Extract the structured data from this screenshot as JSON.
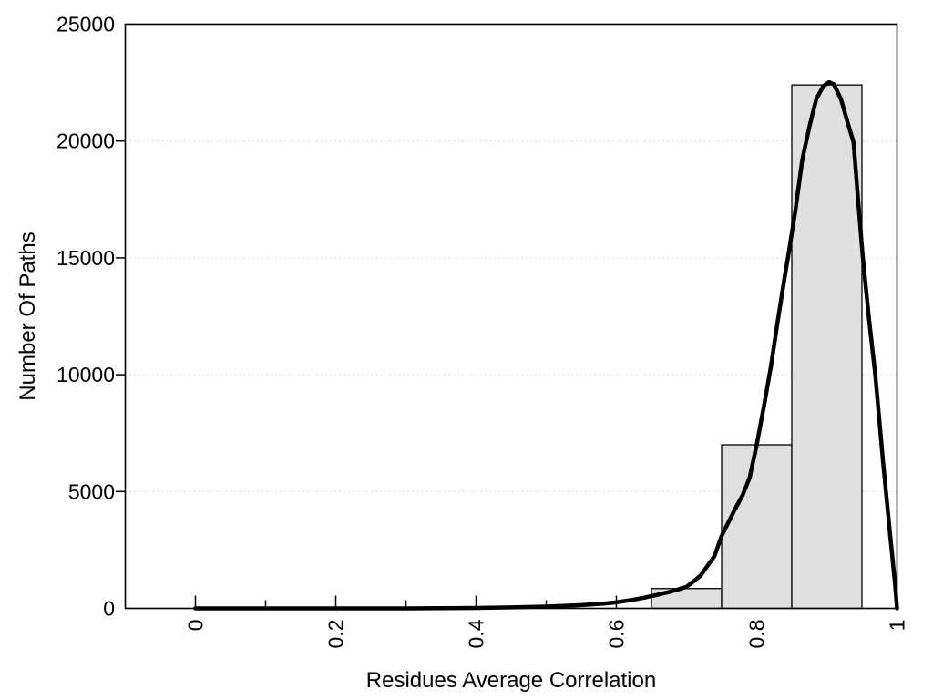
{
  "chart_data": {
    "type": "bar",
    "subtype": "histogram_with_density_curve",
    "title": "",
    "xlabel": "Residues Average Correlation",
    "ylabel": "Number Of Paths",
    "xlim": [
      -0.1,
      1.0
    ],
    "ylim": [
      0,
      25000
    ],
    "x_major_ticks": {
      "values": [
        0,
        0.2,
        0.4,
        0.6,
        0.8,
        1.0
      ],
      "labels": [
        "0",
        "0.2",
        "0.4",
        "0.6",
        "0.8",
        "1"
      ]
    },
    "x_minor_ticks": [
      0.1,
      0.3,
      0.5,
      0.7,
      0.9
    ],
    "y_ticks": {
      "values": [
        0,
        5000,
        10000,
        15000,
        20000,
        25000
      ],
      "labels": [
        "0",
        "5000",
        "10000",
        "15000",
        "20000",
        "25000"
      ]
    },
    "y_tick_marks": [
      5000,
      10000,
      15000,
      20000
    ],
    "grid_y_values": [
      5000,
      10000,
      15000,
      20000
    ],
    "grid_style": "horizontal-dotted",
    "x_tick_label_rotation_deg": 90,
    "legend": "none",
    "bars": [
      {
        "bin_start": 0.65,
        "bin_end": 0.75,
        "count": 850
      },
      {
        "bin_start": 0.75,
        "bin_end": 0.85,
        "count": 7000
      },
      {
        "bin_start": 0.85,
        "bin_end": 0.95,
        "count": 22400
      }
    ],
    "curve_name": "density-fit-curve",
    "curve_points": [
      [
        0.0,
        0
      ],
      [
        0.05,
        0
      ],
      [
        0.1,
        0
      ],
      [
        0.15,
        0
      ],
      [
        0.2,
        0
      ],
      [
        0.25,
        0
      ],
      [
        0.3,
        0
      ],
      [
        0.35,
        10
      ],
      [
        0.4,
        20
      ],
      [
        0.45,
        45
      ],
      [
        0.5,
        80
      ],
      [
        0.55,
        140
      ],
      [
        0.58,
        200
      ],
      [
        0.6,
        260
      ],
      [
        0.62,
        350
      ],
      [
        0.64,
        460
      ],
      [
        0.66,
        590
      ],
      [
        0.68,
        740
      ],
      [
        0.7,
        920
      ],
      [
        0.72,
        1400
      ],
      [
        0.74,
        2250
      ],
      [
        0.75,
        3100
      ],
      [
        0.76,
        3700
      ],
      [
        0.77,
        4300
      ],
      [
        0.78,
        4850
      ],
      [
        0.79,
        5600
      ],
      [
        0.8,
        7000
      ],
      [
        0.81,
        8600
      ],
      [
        0.82,
        10300
      ],
      [
        0.83,
        12300
      ],
      [
        0.84,
        14200
      ],
      [
        0.845,
        15100
      ],
      [
        0.855,
        17000
      ],
      [
        0.865,
        19200
      ],
      [
        0.875,
        20600
      ],
      [
        0.885,
        21800
      ],
      [
        0.895,
        22350
      ],
      [
        0.903,
        22520
      ],
      [
        0.91,
        22430
      ],
      [
        0.92,
        21800
      ],
      [
        0.93,
        20750
      ],
      [
        0.938,
        19950
      ],
      [
        0.945,
        17300
      ],
      [
        0.951,
        15100
      ],
      [
        0.96,
        12400
      ],
      [
        0.969,
        10000
      ],
      [
        0.98,
        6300
      ],
      [
        0.99,
        3200
      ],
      [
        0.997,
        1100
      ],
      [
        1.0,
        0
      ]
    ],
    "colors": {
      "background": "#ffffff",
      "bar_fill": "#e0e0e0",
      "bar_edge": "#000000",
      "curve": "#000000",
      "grid": "#d6d6d6",
      "axis": "#000000",
      "text": "#000000"
    }
  }
}
